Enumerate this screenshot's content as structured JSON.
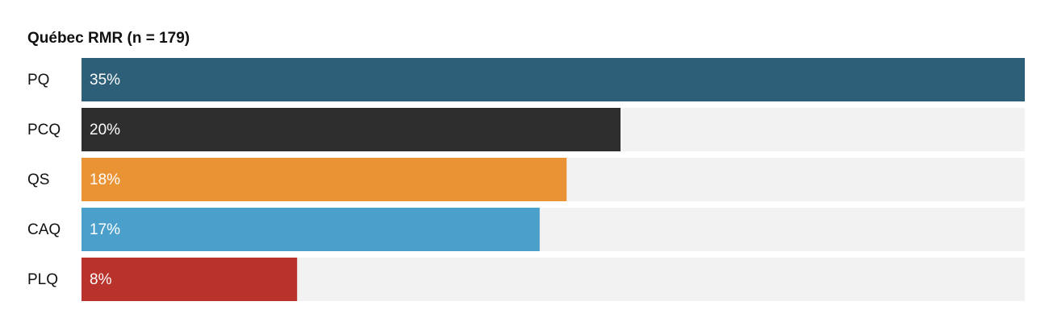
{
  "chart_data": {
    "type": "bar",
    "orientation": "horizontal",
    "title": "Québec RMR (n = 179)",
    "categories": [
      "PQ",
      "PCQ",
      "QS",
      "CAQ",
      "PLQ"
    ],
    "values": [
      35,
      20,
      18,
      17,
      8
    ],
    "value_labels": [
      "35%",
      "20%",
      "18%",
      "17%",
      "8%"
    ],
    "colors": [
      "#2e5f78",
      "#2e2e2e",
      "#e99335",
      "#4aa0cb",
      "#b9322b"
    ],
    "xlim": [
      0,
      35
    ]
  }
}
